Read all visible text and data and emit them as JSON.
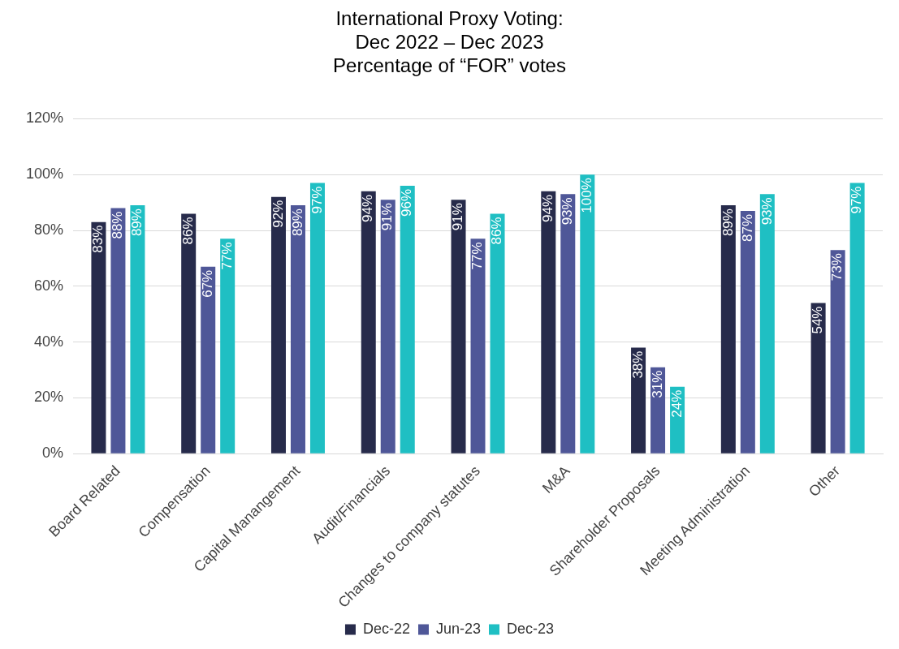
{
  "chart_data": {
    "type": "bar",
    "title": "International Proxy Voting:\nDec 2022 – Dec 2023\nPercentage of “FOR” votes",
    "categories": [
      "Board Related",
      "Compensation",
      "Capital Manangement",
      "Audit/Financials",
      "Changes to company statutes",
      "M&A",
      "Shareholder Proposals",
      "Meeting Administration",
      "Other"
    ],
    "series": [
      {
        "name": "Dec-22",
        "color": "#272b4b",
        "values": [
          83,
          86,
          92,
          94,
          91,
          94,
          38,
          89,
          54
        ],
        "value_labels": [
          "83%",
          "86%",
          "92%",
          "94%",
          "91%",
          "94%",
          "38%",
          "89%",
          "54%"
        ]
      },
      {
        "name": "Jun-23",
        "color": "#4f5798",
        "values": [
          88,
          67,
          89,
          91,
          77,
          93,
          31,
          87,
          73
        ],
        "value_labels": [
          "88%",
          "67%",
          "89%",
          "91%",
          "77%",
          "93%",
          "31%",
          "87%",
          "73%"
        ]
      },
      {
        "name": "Dec-23",
        "color": "#1fbfc3",
        "values": [
          89,
          77,
          97,
          96,
          86,
          100,
          24,
          93,
          97
        ],
        "value_labels": [
          "89%",
          "77%",
          "97%",
          "96%",
          "86%",
          "100%",
          "24%",
          "93%",
          "97%"
        ]
      }
    ],
    "ylim": [
      0,
      120
    ],
    "yticks": [
      {
        "value": 0,
        "label": "0%"
      },
      {
        "value": 20,
        "label": "20%"
      },
      {
        "value": 40,
        "label": "40%"
      },
      {
        "value": 60,
        "label": "60%"
      },
      {
        "value": 80,
        "label": "80%"
      },
      {
        "value": 100,
        "label": "100%"
      },
      {
        "value": 120,
        "label": "120%"
      }
    ],
    "grid": "y",
    "legend": "bottom"
  }
}
